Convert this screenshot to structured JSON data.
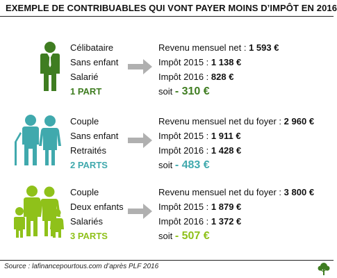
{
  "title": "EXEMPLE DE CONTRIBUABLES QUI VONT PAYER MOINS D’IMPÔT EN 2016",
  "colors": {
    "green": "#3f7d21",
    "teal": "#40a9ad",
    "lime": "#8fc11a",
    "arrow": "#b0b0b0",
    "rule": "#222222"
  },
  "cases": [
    {
      "icon": "single-person-suit-icon",
      "status": "Célibataire",
      "children": "Sans enfant",
      "occupation": "Salarié",
      "parts": "1 PART",
      "revenue_label": "Revenu mensuel net : ",
      "revenue_value": "1 593 €",
      "tax2015_label": "Impôt 2015 : ",
      "tax2015_value": "1 138 €",
      "tax2016_label": "Impôt 2016 : ",
      "tax2016_value": "828 €",
      "soit_label": "soit ",
      "saving": "- 310 €",
      "color": "#3f7d21"
    },
    {
      "icon": "elderly-couple-icon",
      "status": "Couple",
      "children": "Sans enfant",
      "occupation": "Retraités",
      "parts": "2 PARTS",
      "revenue_label": "Revenu mensuel net du foyer : ",
      "revenue_value": "2 960 €",
      "tax2015_label": "Impôt 2015 : ",
      "tax2015_value": "1 911 €",
      "tax2016_label": "Impôt 2016 : ",
      "tax2016_value": "1 428 €",
      "soit_label": "soit ",
      "saving": "- 483 €",
      "color": "#40a9ad"
    },
    {
      "icon": "family-two-children-icon",
      "status": "Couple",
      "children": "Deux enfants",
      "occupation": "Salariés",
      "parts": "3 PARTS",
      "revenue_label": "Revenu mensuel net du foyer : ",
      "revenue_value": "3 800 €",
      "tax2015_label": "Impôt 2015 : ",
      "tax2015_value": "1 879 €",
      "tax2016_label": "Impôt 2016 : ",
      "tax2016_value": "1 372 €",
      "soit_label": "soit ",
      "saving": "- 507 €",
      "color": "#8fc11a"
    }
  ],
  "footer": {
    "source": "Source : lafinancepourtous.com d’après PLF 2016",
    "logo": "tree-logo-icon"
  }
}
